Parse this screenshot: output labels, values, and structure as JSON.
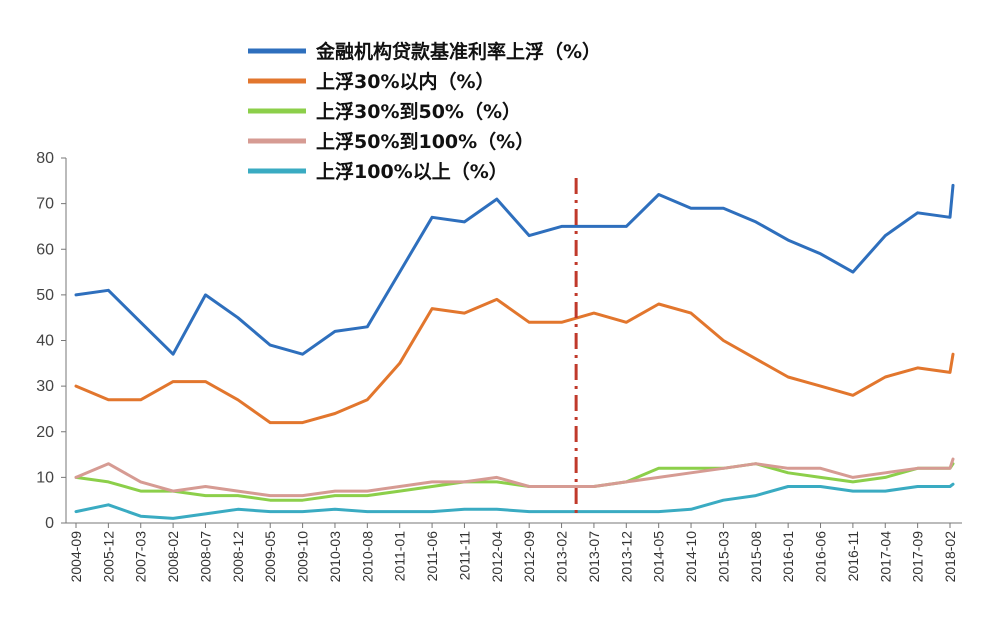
{
  "chart_data": {
    "type": "line",
    "title": "",
    "xlabel": "",
    "ylabel": "",
    "ylim": [
      0,
      80
    ],
    "yticks": [
      0,
      10,
      20,
      30,
      40,
      50,
      60,
      70,
      80
    ],
    "x_tick_labels": [
      "2004-09",
      "2005-12",
      "2007-03",
      "2008-02",
      "2008-07",
      "2008-12",
      "2009-05",
      "2009-10",
      "2010-03",
      "2010-08",
      "2011-01",
      "2011-06",
      "2011-11",
      "2012-04",
      "2012-09",
      "2013-02",
      "2013-07",
      "2013-12",
      "2014-05",
      "2014-10",
      "2015-03",
      "2015-08",
      "2016-01",
      "2016-06",
      "2016-11",
      "2017-04",
      "2017-09",
      "2018-02"
    ],
    "x": [
      "2004-09",
      "2005-12",
      "2007-03",
      "2008-02",
      "2008-07",
      "2008-12",
      "2009-05",
      "2009-10",
      "2010-03",
      "2010-08",
      "2011-01",
      "2011-06",
      "2011-11",
      "2012-04",
      "2012-09",
      "2013-02",
      "2013-07",
      "2013-12",
      "2014-05",
      "2014-10",
      "2015-03",
      "2015-08",
      "2016-01",
      "2016-06",
      "2016-11",
      "2017-04",
      "2017-09",
      "2018-02",
      "2018-04"
    ],
    "series": [
      {
        "name": "金融机构贷款基准利率上浮（%）",
        "color": "#2e6fbd",
        "values": [
          50,
          51,
          44,
          37,
          50,
          45,
          39,
          37,
          42,
          43,
          55,
          67,
          66,
          71,
          63,
          65,
          65,
          65,
          72,
          69,
          69,
          66,
          62,
          59,
          55,
          63,
          68,
          67,
          74
        ]
      },
      {
        "name": "上浮30%以内（%）",
        "color": "#e2762d",
        "values": [
          30,
          27,
          27,
          31,
          31,
          27,
          22,
          22,
          24,
          27,
          35,
          47,
          46,
          49,
          44,
          44,
          46,
          44,
          48,
          46,
          40,
          36,
          32,
          30,
          28,
          32,
          34,
          33,
          37
        ]
      },
      {
        "name": "上浮30%到50%（%）",
        "color": "#8ccf4a",
        "values": [
          10,
          9,
          7,
          7,
          6,
          6,
          5,
          5,
          6,
          6,
          7,
          8,
          9,
          9,
          8,
          8,
          8,
          9,
          12,
          12,
          12,
          13,
          11,
          10,
          9,
          10,
          12,
          12,
          13
        ]
      },
      {
        "name": "上浮50%到100%（%）",
        "color": "#d69b93",
        "values": [
          10,
          13,
          9,
          7,
          8,
          7,
          6,
          6,
          7,
          7,
          8,
          9,
          9,
          10,
          8,
          8,
          8,
          9,
          10,
          11,
          12,
          13,
          12,
          12,
          10,
          11,
          12,
          12,
          14
        ]
      },
      {
        "name": "上浮100%以上（%）",
        "color": "#3aabc2",
        "values": [
          2.5,
          4,
          1.5,
          1,
          2,
          3,
          2.5,
          2.5,
          3,
          2.5,
          2.5,
          2.5,
          3,
          3,
          2.5,
          2.5,
          2.5,
          2.5,
          2.5,
          3,
          5,
          6,
          8,
          8,
          7,
          7,
          8,
          8,
          8.5
        ]
      }
    ],
    "annotations": [
      {
        "type": "vertical-dashed-line",
        "x": "2013-05",
        "color": "#c0392b"
      }
    ],
    "legend_position": "top"
  }
}
